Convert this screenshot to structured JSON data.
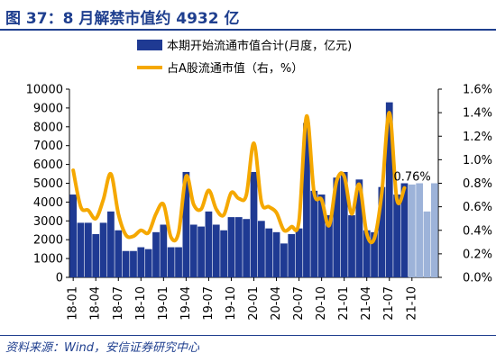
{
  "header": {
    "title": "图 37：8 月解禁市值约 4932 亿"
  },
  "footer": {
    "source": "资料来源：Wind，安信证券研究中心"
  },
  "colors": {
    "bar": "#1f3a93",
    "bar_forecast": "#9db3d9",
    "line": "#f5a800",
    "title": "#1f3f8f"
  },
  "chart_data": {
    "type": "bar",
    "legend": [
      "本期开始流通市值合计(月度，亿元)",
      "占A股流通市值（右，%）"
    ],
    "legend_position": "top-right",
    "x_tick_labels": [
      "18-01",
      "18-04",
      "18-07",
      "18-10",
      "19-01",
      "19-04",
      "19-07",
      "19-10",
      "20-01",
      "20-04",
      "20-07",
      "20-10",
      "21-01",
      "21-04",
      "21-07",
      "21-10"
    ],
    "left_axis": {
      "ylim": [
        0,
        10000
      ],
      "ticks": [
        "0",
        "1000",
        "2000",
        "3000",
        "4000",
        "5000",
        "6000",
        "7000",
        "8000",
        "9000",
        "10000"
      ]
    },
    "right_axis": {
      "ylim": [
        0,
        1.6
      ],
      "ticks": [
        "0.0%",
        "0.2%",
        "0.4%",
        "0.6%",
        "0.8%",
        "1.0%",
        "1.2%",
        "1.4%",
        "1.6%"
      ]
    },
    "annotation": "0.76%",
    "series": [
      {
        "name": "本期开始流通市值合计(月度，亿元)",
        "kind": "bar",
        "axis": "left",
        "values": [
          4400,
          2900,
          2900,
          2300,
          2900,
          3500,
          2500,
          1400,
          1400,
          1600,
          1500,
          2400,
          2800,
          1600,
          1600,
          5600,
          2800,
          2700,
          3500,
          2800,
          2500,
          3200,
          3200,
          3100,
          5600,
          3000,
          2600,
          2400,
          1800,
          2300,
          2600,
          8200,
          4600,
          4400,
          3300,
          5300,
          5600,
          3300,
          5200,
          2500,
          2400,
          4800,
          9300,
          4400,
          5000,
          4932,
          5000,
          3500,
          5000
        ]
      },
      {
        "name": "占A股流通市值（右，%）",
        "kind": "line",
        "axis": "right",
        "values": [
          0.91,
          0.6,
          0.57,
          0.5,
          0.66,
          0.88,
          0.54,
          0.36,
          0.35,
          0.4,
          0.38,
          0.54,
          0.62,
          0.34,
          0.38,
          0.86,
          0.62,
          0.58,
          0.74,
          0.58,
          0.53,
          0.72,
          0.67,
          0.7,
          1.14,
          0.64,
          0.6,
          0.55,
          0.4,
          0.43,
          0.48,
          1.37,
          0.72,
          0.66,
          0.44,
          0.82,
          0.86,
          0.54,
          0.79,
          0.37,
          0.33,
          0.72,
          1.4,
          0.66,
          0.76
        ]
      }
    ]
  }
}
